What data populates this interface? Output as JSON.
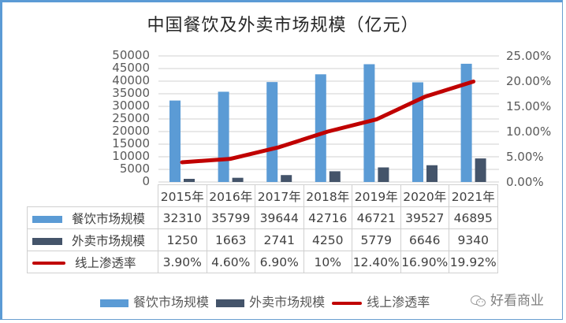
{
  "title": "中国餐饮及外卖市场规模（亿元）",
  "colors": {
    "catering": "#5b9bd5",
    "delivery": "#44546a",
    "penetration": "#c00000",
    "grid": "#d9d9d9",
    "frame": "#5b9bd5"
  },
  "axes": {
    "left_ticks": [
      "50000",
      "45000",
      "40000",
      "35000",
      "30000",
      "25000",
      "20000",
      "15000",
      "10000",
      "5000",
      "0"
    ],
    "right_ticks": [
      "25.00%",
      "20.00%",
      "15.00%",
      "10.00%",
      "5.00%",
      "0.00%"
    ]
  },
  "table": {
    "categories": [
      "2015年",
      "2016年",
      "2017年",
      "2018年",
      "2019年",
      "2020年",
      "2021年"
    ],
    "rows": [
      {
        "label": "餐饮市场规模",
        "values": [
          "32310",
          "35799",
          "39644",
          "42716",
          "46721",
          "39527",
          "46895"
        ]
      },
      {
        "label": "外卖市场规模",
        "values": [
          "1250",
          "1663",
          "2741",
          "4250",
          "5779",
          "6646",
          "9340"
        ]
      },
      {
        "label": "线上渗透率",
        "values": [
          "3.90%",
          "4.60%",
          "6.90%",
          "10%",
          "12.40%",
          "16.90%",
          "19.92%"
        ]
      }
    ]
  },
  "legend": {
    "items": [
      "餐饮市场规模",
      "外卖市场规模",
      "线上渗透率"
    ]
  },
  "watermark": "好看商业",
  "chart_data": {
    "type": "bar",
    "title": "中国餐饮及外卖市场规模（亿元）",
    "categories": [
      "2015年",
      "2016年",
      "2017年",
      "2018年",
      "2019年",
      "2020年",
      "2021年"
    ],
    "series": [
      {
        "name": "餐饮市场规模",
        "type": "bar",
        "axis": "left",
        "values": [
          32310,
          35799,
          39644,
          42716,
          46721,
          39527,
          46895
        ]
      },
      {
        "name": "外卖市场规模",
        "type": "bar",
        "axis": "left",
        "values": [
          1250,
          1663,
          2741,
          4250,
          5779,
          6646,
          9340
        ]
      },
      {
        "name": "线上渗透率",
        "type": "line",
        "axis": "right",
        "values": [
          3.9,
          4.6,
          6.9,
          10.0,
          12.4,
          16.9,
          19.92
        ],
        "unit": "%"
      }
    ],
    "ylim_left": [
      0,
      50000
    ],
    "ylim_right": [
      0,
      25
    ],
    "xlabel": "",
    "ylabel": "",
    "grid": true,
    "legend_position": "bottom",
    "data_table": true
  }
}
